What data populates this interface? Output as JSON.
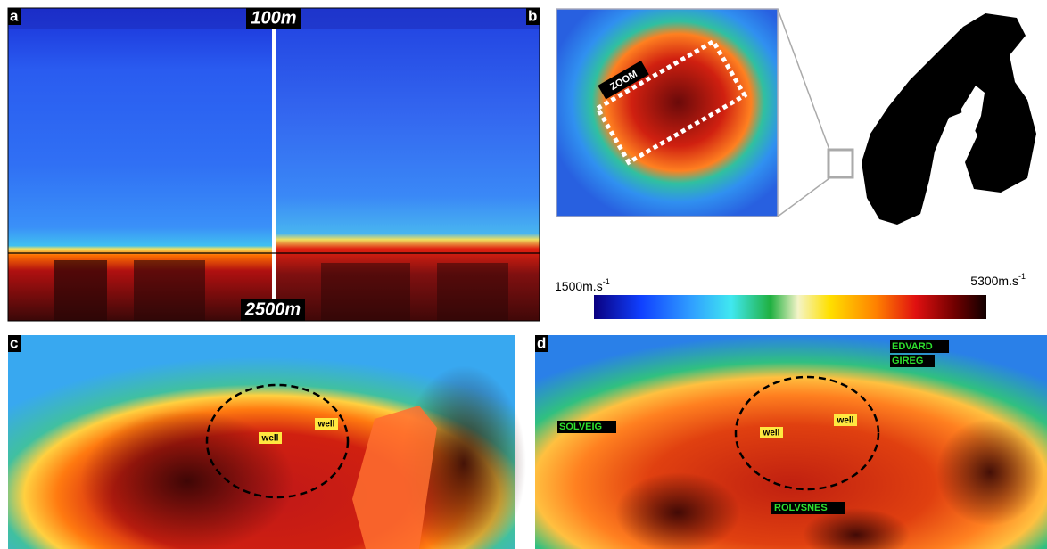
{
  "panels": {
    "a": "a",
    "b": "b",
    "c": "c",
    "d": "d"
  },
  "depth_labels": {
    "top": "100m",
    "bottom": "2500m"
  },
  "zoom": "ZOOM",
  "colorbar": {
    "min": {
      "text": "1500m.s",
      "sup": "-1"
    },
    "max": {
      "text": "5300m.s",
      "sup": "-1"
    }
  },
  "panel_c": {
    "wells": [
      "well",
      "well"
    ]
  },
  "panel_d": {
    "wells": [
      "well",
      "well"
    ],
    "sites": [
      "EDVARD",
      "GIREG",
      "SOLVEIG",
      "ROLVSNES"
    ]
  }
}
